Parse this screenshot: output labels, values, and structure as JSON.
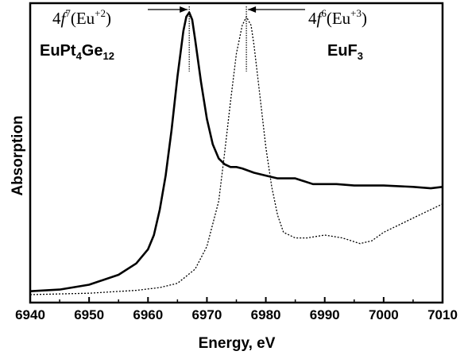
{
  "chart_data": {
    "type": "line",
    "xlabel": "Energy, eV",
    "ylabel": "Absorption",
    "xlim": [
      6940,
      7010
    ],
    "ylim": [
      0,
      1.0
    ],
    "x_ticks": [
      "6940",
      "6950",
      "6960",
      "6970",
      "6980",
      "6990",
      "7000",
      "7010"
    ],
    "grid": false,
    "series": [
      {
        "style": "solid",
        "x": [
          6940,
          6945,
          6950,
          6955,
          6958,
          6960,
          6961,
          6962,
          6963,
          6964,
          6965,
          6966,
          6966.5,
          6967,
          6967.5,
          6968,
          6969,
          6970,
          6971,
          6972,
          6973,
          6974,
          6975,
          6976,
          6978,
          6980,
          6982,
          6985,
          6988,
          6992,
          6995,
          7000,
          7005,
          7008,
          7010
        ],
        "y": [
          0.012,
          0.018,
          0.035,
          0.07,
          0.11,
          0.16,
          0.21,
          0.3,
          0.42,
          0.58,
          0.77,
          0.93,
          0.98,
          0.995,
          0.97,
          0.9,
          0.75,
          0.62,
          0.53,
          0.48,
          0.46,
          0.45,
          0.45,
          0.445,
          0.43,
          0.42,
          0.41,
          0.41,
          0.39,
          0.39,
          0.385,
          0.385,
          0.38,
          0.375,
          0.38
        ]
      },
      {
        "style": "dotted",
        "x": [
          6940,
          6950,
          6958,
          6962,
          6965,
          6968,
          6970,
          6972,
          6973,
          6974,
          6975,
          6976,
          6976.7,
          6977.5,
          6978,
          6979,
          6980,
          6981,
          6982,
          6983,
          6985,
          6987,
          6990,
          6993,
          6996,
          6998,
          7000,
          7003,
          7006,
          7008,
          7010
        ],
        "y": [
          0.0,
          0.005,
          0.015,
          0.025,
          0.04,
          0.09,
          0.17,
          0.33,
          0.5,
          0.68,
          0.85,
          0.95,
          0.98,
          0.95,
          0.88,
          0.7,
          0.52,
          0.38,
          0.28,
          0.22,
          0.2,
          0.2,
          0.21,
          0.2,
          0.18,
          0.19,
          0.22,
          0.25,
          0.28,
          0.3,
          0.32
        ]
      }
    ],
    "annotations": [
      {
        "prefix": "4",
        "f": "f",
        "sup": "7",
        "tail": "(Eu",
        "charge": "+2",
        "close": ")",
        "marker_x": 6967,
        "arrow": "right"
      },
      {
        "prefix": "4",
        "f": "f",
        "sup": "6",
        "tail": "(Eu",
        "charge": "+3",
        "close": ")",
        "marker_x": 6976.7,
        "arrow": "left"
      }
    ],
    "labels": [
      {
        "main": "EuPt",
        "sub1": "4",
        "mid": "Ge",
        "sub2": "12"
      },
      {
        "main": "EuF",
        "sub1": "3"
      }
    ]
  }
}
